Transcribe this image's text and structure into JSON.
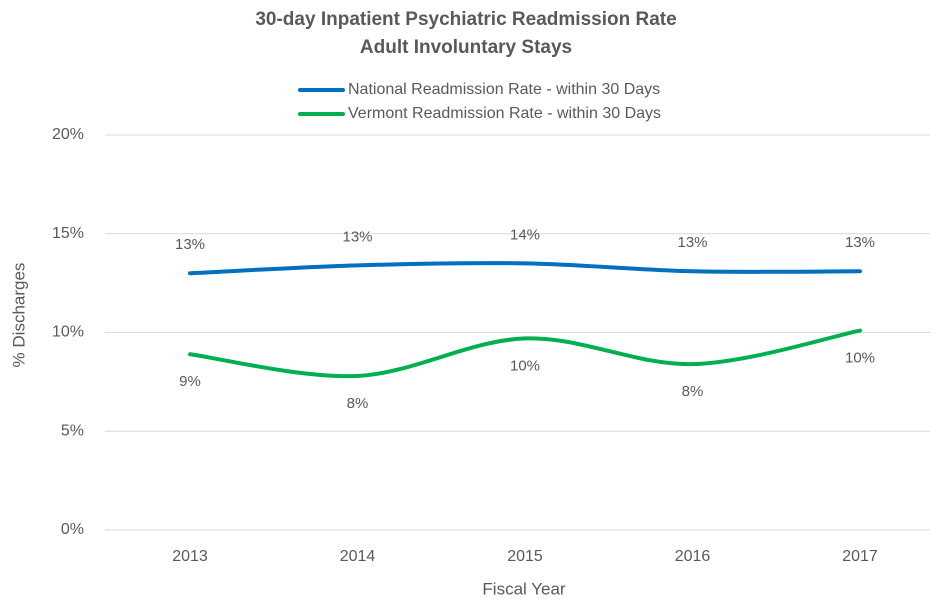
{
  "chart_data": {
    "type": "line",
    "title": "30-day Inpatient Psychiatric Readmission Rate",
    "subtitle": "Adult Involuntary Stays",
    "x_label": "Fiscal Year",
    "y_label": "% Discharges",
    "categories": [
      "2013",
      "2014",
      "2015",
      "2016",
      "2017"
    ],
    "series": [
      {
        "name": "National Readmission Rate - within 30 Days",
        "color": "#0070c0",
        "values": [
          13.0,
          13.4,
          13.5,
          13.1,
          13.1
        ],
        "value_labels": [
          "13%",
          "13%",
          "14%",
          "13%",
          "13%"
        ]
      },
      {
        "name": "Vermont Readmission Rate - within 30 Days",
        "color": "#00b050",
        "values": [
          8.9,
          7.8,
          9.7,
          8.4,
          10.1
        ],
        "value_labels": [
          "9%",
          "8%",
          "10%",
          "8%",
          "10%"
        ]
      }
    ],
    "ylim": [
      0,
      20
    ],
    "yticks": [
      {
        "value": 0,
        "label": "0%"
      },
      {
        "value": 5,
        "label": "5%"
      },
      {
        "value": 10,
        "label": "10%"
      },
      {
        "value": 15,
        "label": "15%"
      },
      {
        "value": 20,
        "label": "20%"
      }
    ],
    "grid": true,
    "smooth": true,
    "legend": "top"
  }
}
